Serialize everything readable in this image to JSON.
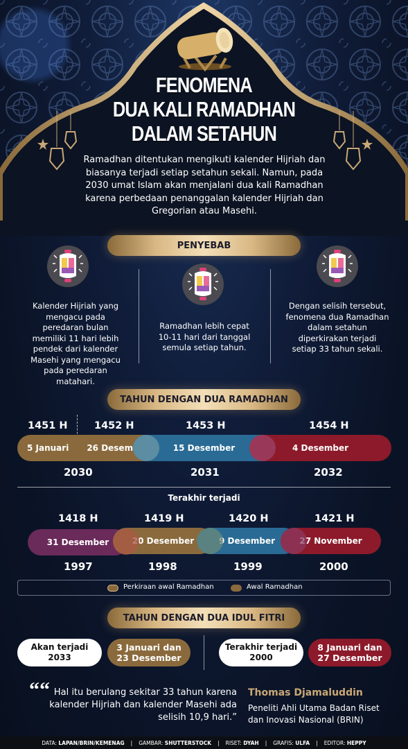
{
  "title": {
    "line1": "FENOMENA",
    "line2": "DUA KALI RAMADHAN",
    "line3": "DALAM SETAHUN"
  },
  "intro": "Ramadhan ditentukan mengikuti kalender Hijriah dan biasanya terjadi setiap setahun sekali. Namun, pada 2030 umat Islam akan menjalani dua kali Ramadhan karena perbedaan penanggalan kalender Hijriah dan Gregorian atau Masehi.",
  "penyebab": {
    "heading": "PENYEBAB",
    "items": [
      {
        "icon": "lantern-icon",
        "text": "Kalender Hijriah yang mengacu pada peredaran bulan memiliki 11 hari lebih pendek dari kalender Masehi yang mengacu pada peredaran matahari."
      },
      {
        "icon": "lantern-icon",
        "text": "Ramadhan lebih cepat 10-11 hari dari tanggal semula setiap tahun."
      },
      {
        "icon": "lantern-icon",
        "text": "Dengan selisih tersebut, fenomena dua Ramadhan dalam setahun diperkirakan terjadi setiap 33 tahun sekali."
      }
    ]
  },
  "tahun_dua_ramadhan": {
    "heading": "TAHUN DENGAN DUA RAMADHAN",
    "future": {
      "hijri": [
        "1451 H",
        "1452 H",
        "1453 H",
        "1454 H"
      ],
      "bars": [
        "5 Januari",
        "26 Desember",
        "15 Desember",
        "4 Desember"
      ],
      "years": [
        "2030",
        "2031",
        "2032"
      ]
    },
    "past_label": "Terakhir terjadi",
    "past": {
      "hijri": [
        "1418 H",
        "1419 H",
        "1420 H",
        "1421 H"
      ],
      "bars": [
        "31 Desember",
        "20 Desember",
        "9 Desember",
        "27 November"
      ],
      "years": [
        "1997",
        "1998",
        "1999",
        "2000"
      ]
    },
    "legend": {
      "estimate": "Perkiraan awal Ramadhan",
      "actual": "Awal Ramadhan"
    }
  },
  "idul_fitri": {
    "heading": "TAHUN DENGAN DUA IDUL FITRI",
    "future_label": "Akan terjadi",
    "future_year": "2033",
    "future_dates_1": "3 Januari dan",
    "future_dates_2": "23 Desember",
    "past_label": "Terakhir terjadi",
    "past_year": "2000",
    "past_dates_1": "8 Januari dan",
    "past_dates_2": "27 Desember"
  },
  "quote": {
    "text": "Hal itu berulang sekitar 33 tahun karena kalender Hijriah dan kalender Masehi ada selisih 10,9 hari.”",
    "mark": "““",
    "author": "Thomas Djamaluddin",
    "role": "Peneliti Ahli Utama Badan Riset dan Inovasi Nasional (BRIN)"
  },
  "footer": {
    "data_label": "DATA:",
    "data": "LAPAN/BRIN/KEMENAG",
    "gambar_label": "GAMBAR:",
    "gambar": "SHUTTERSTOCK",
    "riset_label": "RISET:",
    "riset": "DYAH",
    "grafis_label": "GRAFIS:",
    "grafis": "ULFA",
    "editor_label": "EDITOR:",
    "editor": "HEPPY",
    "sep": "|"
  },
  "colors": {
    "gold": "#c9a877",
    "brown": "#8a6a3c",
    "blue": "#2a6b95",
    "red": "#8c1a2a",
    "purple": "#6a2a5a",
    "navy": "#0b1428"
  }
}
